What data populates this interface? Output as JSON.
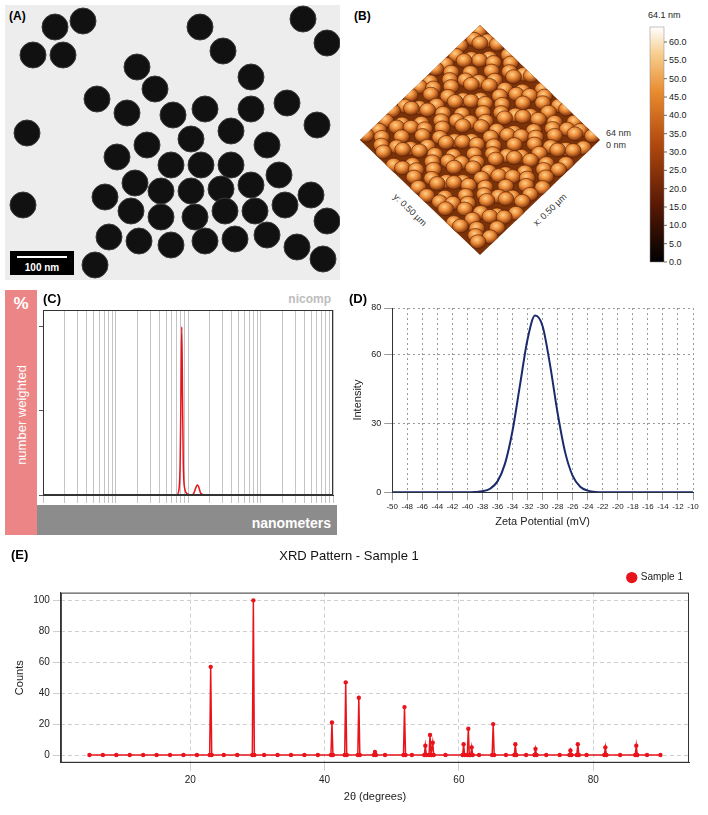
{
  "panels": [
    {
      "label": "(A)",
      "scale_bar": "100 nm"
    },
    {
      "label": "(B)",
      "x_axis": "x: 0.50 µm",
      "y_axis": "y: 0.50 µm",
      "z_top": "64 nm",
      "z_bottom": "0 nm",
      "color_bar": {
        "title": "64.1 nm",
        "range": [
          0,
          64.1
        ],
        "ticks": [
          {
            "value": 0,
            "label": "0.0"
          },
          {
            "value": 5,
            "label": "5.0"
          },
          {
            "value": 10,
            "label": "10.0"
          },
          {
            "value": 15,
            "label": "15.0"
          },
          {
            "value": 20,
            "label": "20.0"
          },
          {
            "value": 25,
            "label": "25.0"
          },
          {
            "value": 30,
            "label": "30.0"
          },
          {
            "value": 35,
            "label": "35.0"
          },
          {
            "value": 40,
            "label": "40.0"
          },
          {
            "value": 45,
            "label": "45.0"
          },
          {
            "value": 50,
            "label": "50.0"
          },
          {
            "value": 55,
            "label": "55.0"
          },
          {
            "value": 60,
            "label": "60.0"
          }
        ]
      }
    }
  ],
  "chart_data": [
    {
      "panel": "(C)",
      "type": "line",
      "x_label": "nanometers",
      "y_label": "number weighted",
      "annotations": [
        "%",
        "nicomp"
      ],
      "log": "x",
      "tick_labels": false,
      "grid": true,
      "color": "#e8141c",
      "x": [
        1,
        60,
        70,
        75,
        78,
        80,
        82,
        84,
        86,
        90,
        100,
        110,
        120,
        130,
        135,
        140,
        150,
        170,
        10000
      ],
      "values": [
        0,
        0,
        0,
        3,
        20,
        60,
        100,
        60,
        20,
        4,
        0.5,
        0,
        1,
        5,
        6,
        5,
        1,
        0,
        0
      ],
      "xlim": [
        1,
        10000
      ],
      "xticks": [
        1,
        2,
        3,
        4,
        5,
        6,
        7,
        8,
        9,
        10,
        20,
        30,
        40,
        50,
        60,
        70,
        80,
        90,
        100,
        200,
        300,
        400,
        500,
        600,
        700,
        800,
        900,
        1000,
        2000,
        3000,
        4000,
        5000,
        6000,
        7000,
        8000,
        9000,
        10000
      ],
      "ylim": [
        0,
        110
      ],
      "yticks": [
        0,
        50,
        100
      ]
    },
    {
      "panel": "(D)",
      "type": "line",
      "x_label": "Zeta Potential (mV)",
      "y_label": "Intensity",
      "grid": true,
      "color": "#1a2a6c",
      "x": [
        -50,
        -40,
        -39,
        -38,
        -37,
        -36,
        -35,
        -34,
        -33,
        -32,
        -31,
        -30,
        -29,
        -28,
        -27,
        -26,
        -25,
        -24,
        -23,
        -22,
        -10
      ],
      "values": [
        0,
        0,
        0.1,
        0.4,
        1.5,
        4.7,
        12.4,
        26.7,
        46.7,
        66.4,
        76.7,
        72.1,
        55.1,
        34.3,
        17.3,
        7.1,
        2.4,
        0.7,
        0.1,
        0,
        0
      ],
      "xlim": [
        -50,
        -10
      ],
      "xticks": [
        -50,
        -48,
        -46,
        -44,
        -42,
        -40,
        -38,
        -36,
        -34,
        -32,
        -30,
        -28,
        -26,
        -24,
        -22,
        -20,
        -18,
        -16,
        -14,
        -12,
        -10
      ],
      "ylim": [
        0,
        80
      ],
      "yticks": [
        0,
        30,
        60,
        80
      ]
    },
    {
      "panel": "(E)",
      "type": "line",
      "title": "XRD Pattern - Sample 1",
      "x_label": "2θ (degrees)",
      "y_label": "Counts",
      "legend": "top right",
      "grid": true,
      "xlim": [
        0.75,
        94.25
      ],
      "xticks": [
        20,
        40,
        60,
        80
      ],
      "ylim": [
        -5,
        105
      ],
      "yticks": [
        0,
        20,
        40,
        60,
        80,
        100
      ],
      "x": [
        5,
        7,
        9,
        11,
        13,
        15,
        17,
        19,
        21,
        22.9,
        23.05,
        23.2,
        25,
        27,
        29.25,
        29.4,
        29.55,
        31,
        33,
        35,
        37,
        39,
        40.95,
        41.1,
        41.25,
        43.0,
        43.15,
        43.3,
        44.95,
        45.1,
        45.25,
        47.35,
        47.5,
        47.65,
        49,
        51.75,
        51.9,
        52.05,
        53,
        54.85,
        55.0,
        55.15,
        55.55,
        55.7,
        55.85,
        55.95,
        56.1,
        56.25,
        58,
        60.55,
        60.7,
        60.85,
        61.25,
        61.4,
        61.55,
        61.75,
        61.9,
        62.05,
        63,
        64.95,
        65.1,
        65.25,
        67,
        68.25,
        68.4,
        68.55,
        70,
        71.25,
        71.4,
        71.55,
        73,
        75,
        76.45,
        76.6,
        76.75,
        77.55,
        77.7,
        77.85,
        79,
        81.65,
        81.8,
        81.95,
        84,
        86.25,
        86.4,
        86.55,
        88,
        90
      ],
      "series": [
        {
          "name": "Sample 1",
          "color": "#e8141c",
          "marker": "circle",
          "values": [
            0,
            0,
            0,
            0,
            0,
            0,
            0,
            0,
            0,
            0,
            57,
            0,
            0,
            0,
            0,
            100,
            0,
            0,
            0,
            0,
            0,
            0,
            0,
            21,
            0,
            0,
            47,
            0,
            0,
            37,
            0,
            0,
            2,
            0,
            0,
            0,
            31,
            0,
            0,
            0,
            6,
            0,
            0,
            13,
            0,
            0,
            8,
            0,
            0,
            0,
            7,
            0,
            0,
            17,
            0,
            0,
            5,
            0,
            0,
            0,
            20,
            0,
            0,
            0,
            7,
            0,
            0,
            0,
            4,
            0,
            0,
            0,
            0,
            3,
            0,
            0,
            7,
            0,
            0,
            0,
            5,
            0,
            0,
            0,
            6,
            0,
            0,
            0
          ]
        }
      ]
    }
  ]
}
